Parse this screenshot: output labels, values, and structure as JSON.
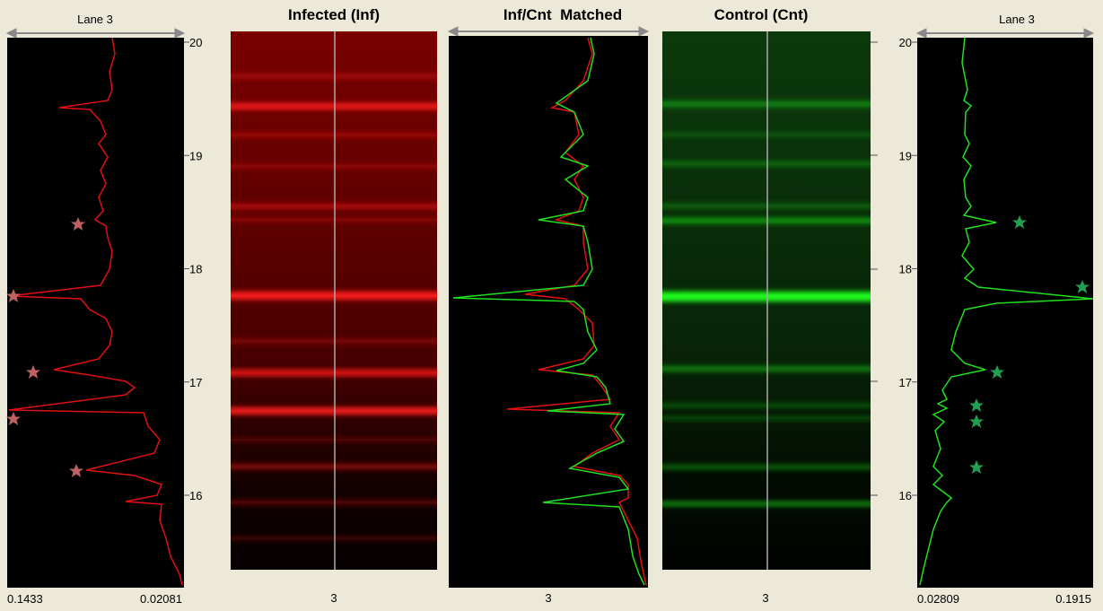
{
  "panels": [
    {
      "header": "Lane 3",
      "ticks": [
        20,
        19,
        18,
        17,
        16
      ],
      "min_label": "0.1433",
      "max_label": "0.02081"
    },
    {
      "title": "Infected (Inf)",
      "lane": "3"
    },
    {
      "title": "Inf/Cnt  Matched",
      "lane": "3"
    },
    {
      "title": "Control (Cnt)",
      "lane": "3"
    },
    {
      "header": "Lane 3",
      "ticks": [
        20,
        19,
        18,
        17,
        16
      ],
      "min_label": "0.02809",
      "max_label": "0.1915"
    }
  ]
}
